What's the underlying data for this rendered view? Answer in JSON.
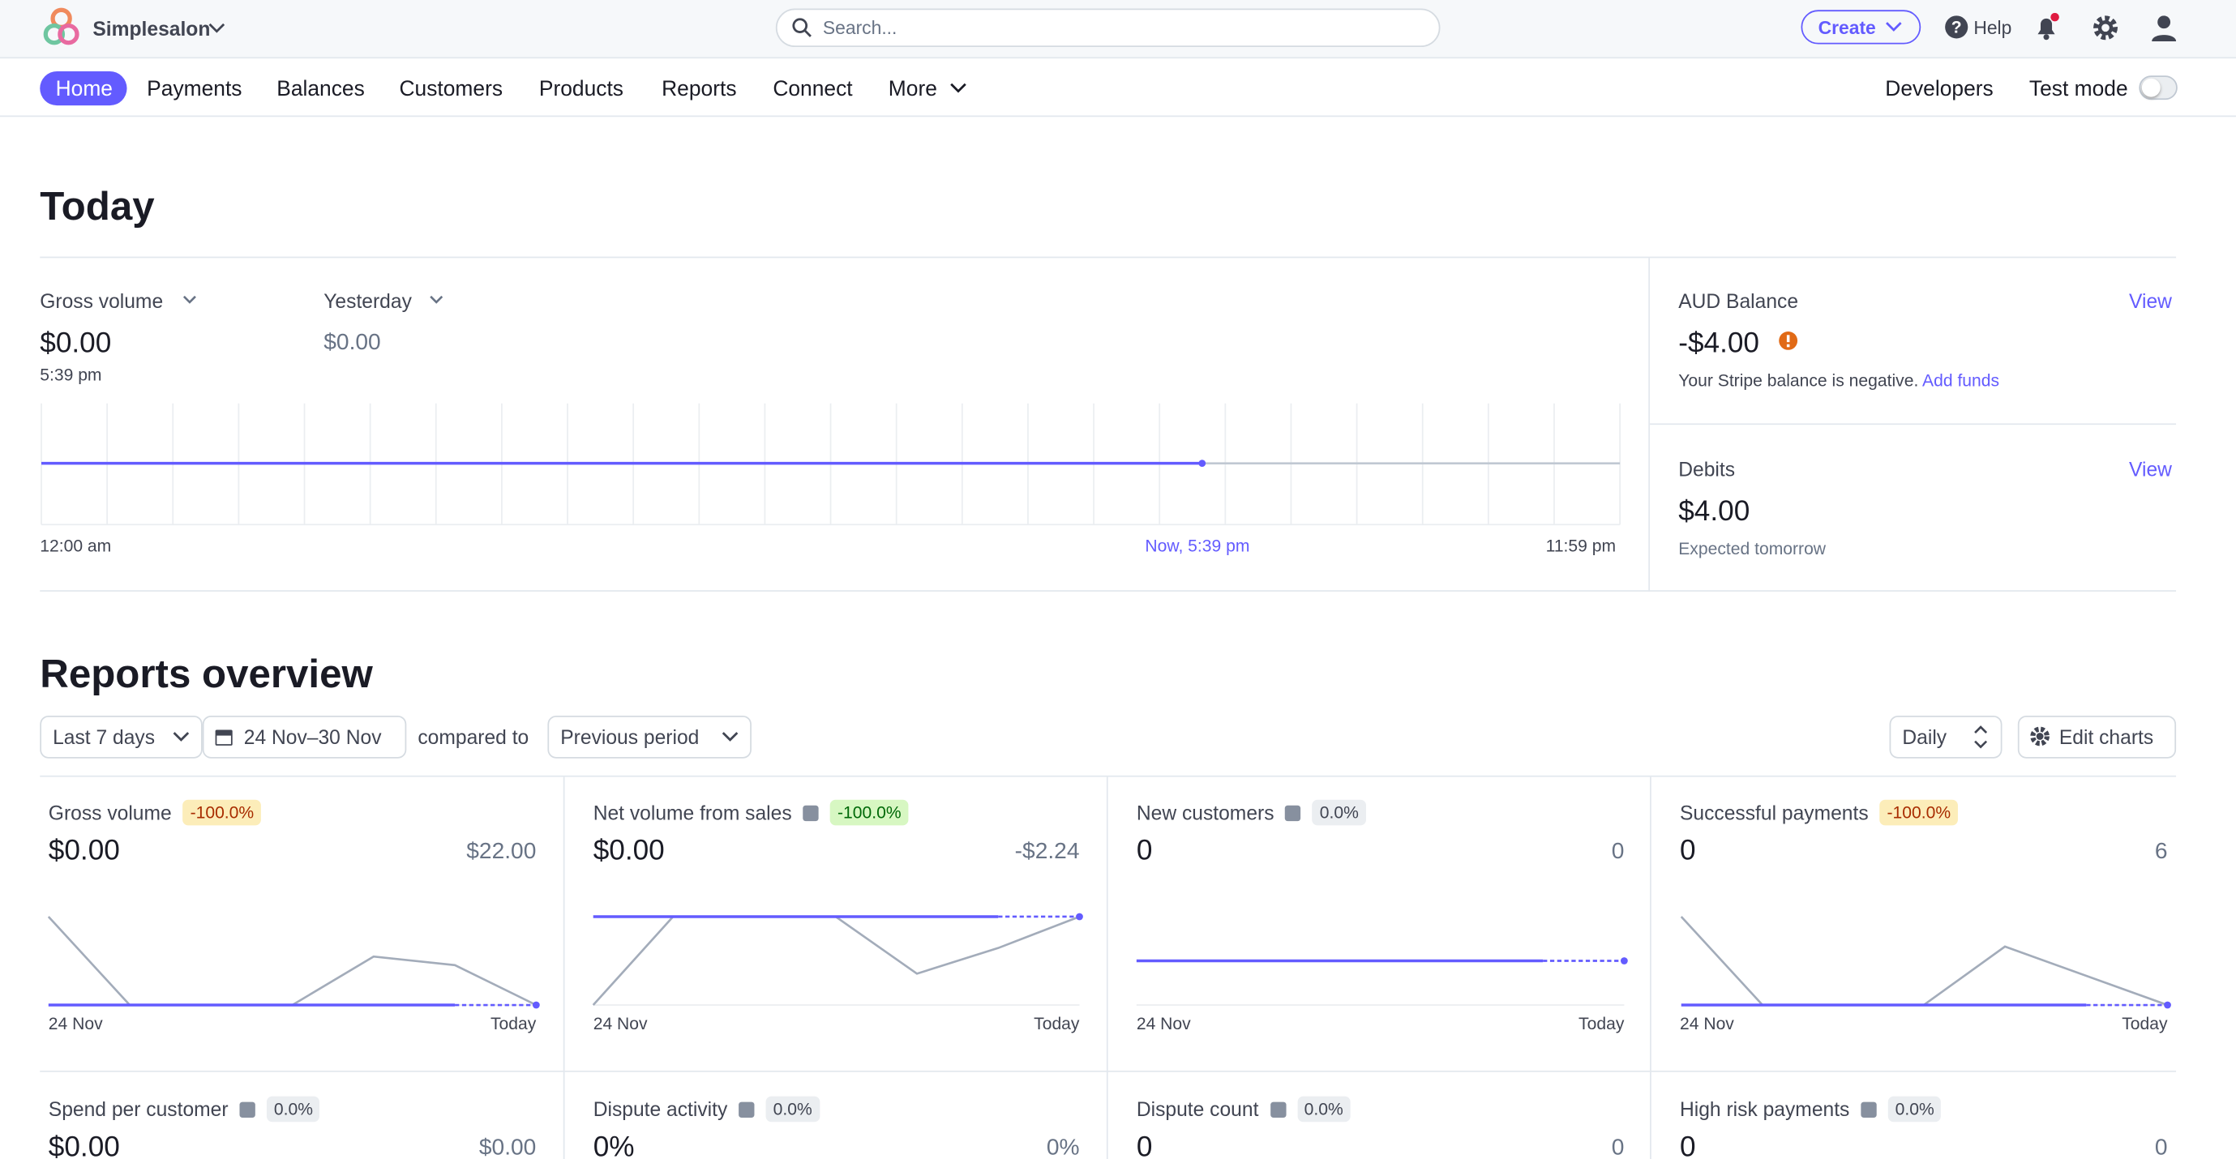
{
  "header": {
    "brand": "Simplesalon",
    "search": "Search...",
    "create": "Create",
    "help": "Help"
  },
  "nav": {
    "items": [
      "Home",
      "Payments",
      "Balances",
      "Customers",
      "Products",
      "Reports",
      "Connect",
      "More"
    ],
    "developers": "Developers",
    "test_mode": "Test mode"
  },
  "today": {
    "title": "Today",
    "metric": "Gross volume",
    "value": "$0.00",
    "time": "5:39 pm",
    "compare": "Yesterday",
    "compare_value": "$0.00",
    "axis": [
      "12:00 am",
      "Now, 5:39 pm",
      "11:59 pm"
    ]
  },
  "balance": {
    "label": "AUD Balance",
    "view": "View",
    "value": "-$4.00",
    "note": "Your Stripe balance is negative.",
    "add_funds": "Add funds"
  },
  "debits": {
    "label": "Debits",
    "view": "View",
    "value": "$4.00",
    "note": "Expected tomorrow"
  },
  "reports": {
    "title": "Reports overview",
    "range": "Last 7 days",
    "dates": "24 Nov–30 Nov",
    "compared": "compared to",
    "period": "Previous period",
    "interval": "Daily",
    "edit": "Edit charts"
  },
  "cards": [
    {
      "title": "Gross volume",
      "badge": "-100.0%",
      "value": "$0.00",
      "compare": "$22.00",
      "start": "24 Nov",
      "end": "Today"
    },
    {
      "title": "Net volume from sales",
      "badge": "-100.0%",
      "value": "$0.00",
      "compare": "-$2.24",
      "start": "24 Nov",
      "end": "Today"
    },
    {
      "title": "New customers",
      "badge": "0.0%",
      "value": "0",
      "compare": "0",
      "start": "24 Nov",
      "end": "Today"
    },
    {
      "title": "Successful payments",
      "badge": "-100.0%",
      "value": "0",
      "compare": "6",
      "start": "24 Nov",
      "end": "Today"
    },
    {
      "title": "Spend per customer",
      "badge": "0.0%",
      "value": "$0.00",
      "compare": "$0.00"
    },
    {
      "title": "Dispute activity",
      "badge": "0.0%",
      "value": "0%",
      "compare": "0%"
    },
    {
      "title": "Dispute count",
      "badge": "0.0%",
      "value": "0",
      "compare": "0"
    },
    {
      "title": "High risk payments",
      "badge": "0.0%",
      "value": "0",
      "compare": "0"
    }
  ]
}
